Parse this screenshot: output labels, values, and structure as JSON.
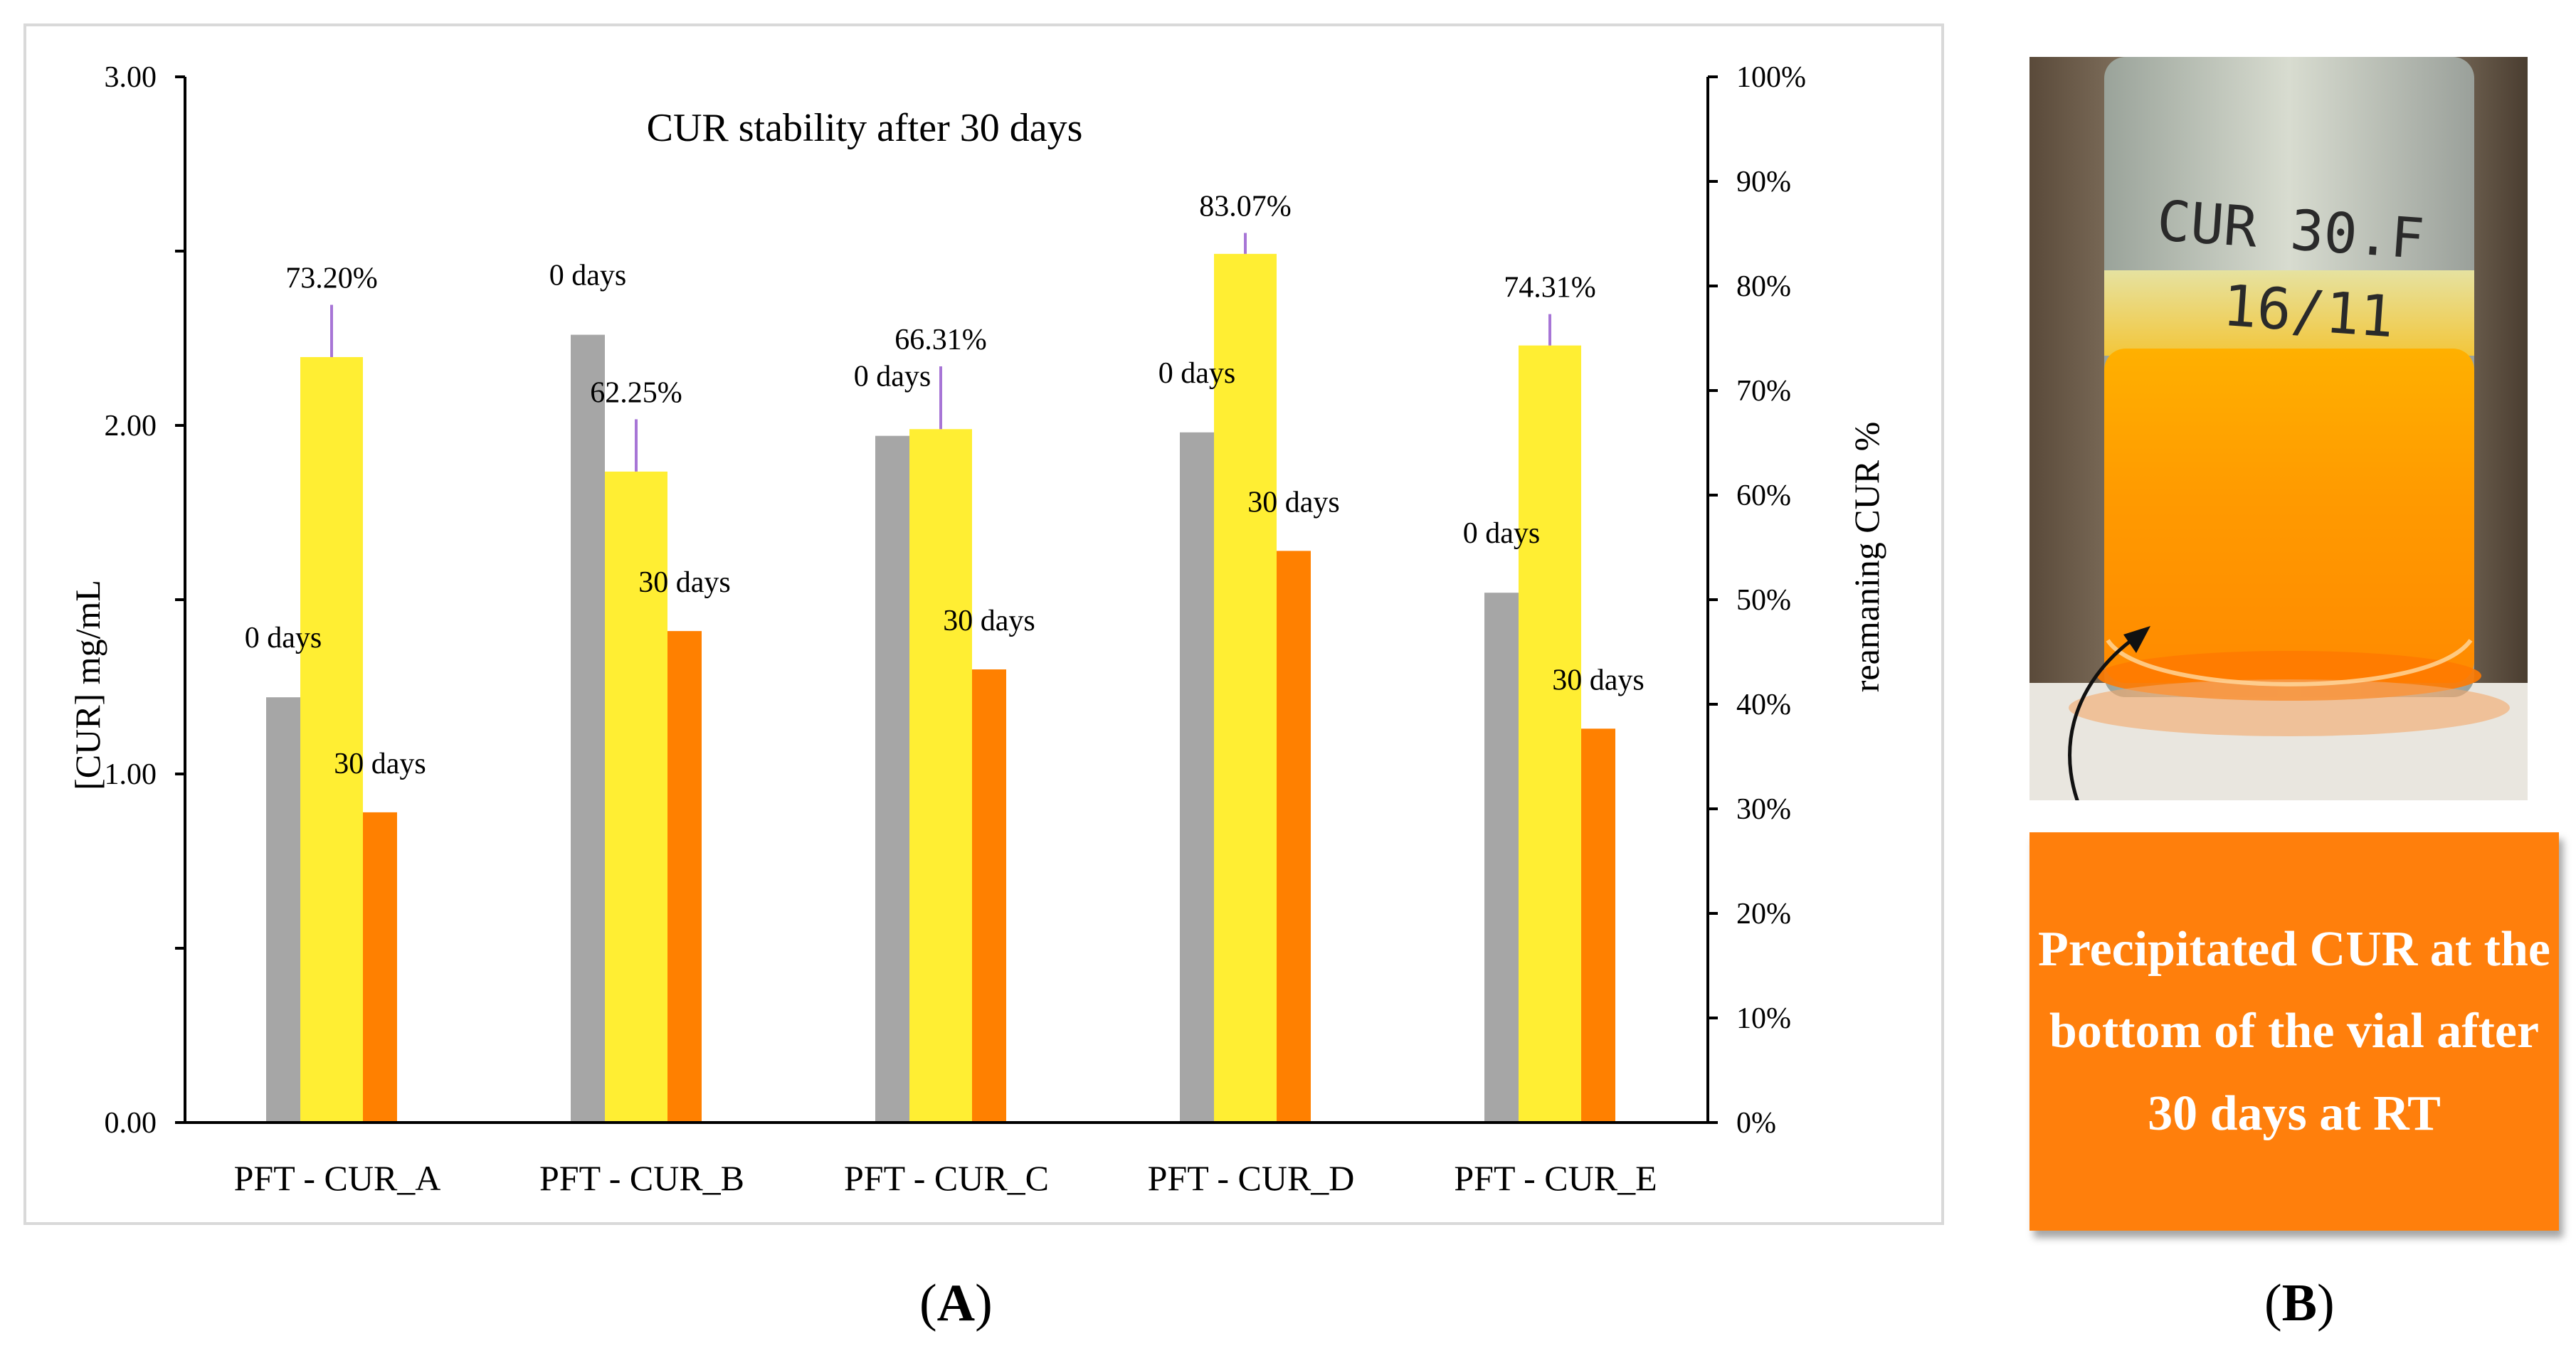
{
  "chart_data": {
    "type": "bar",
    "title": "CUR stability after 30 days",
    "categories": [
      "PFT - CUR_A",
      "PFT - CUR_B",
      "PFT - CUR_C",
      "PFT - CUR_D",
      "PFT - CUR_E"
    ],
    "series": [
      {
        "name": "0 days",
        "axis": "left",
        "color": "#a6a6a6",
        "values": [
          1.22,
          2.26,
          1.97,
          1.98,
          1.52
        ]
      },
      {
        "name": "remaining CUR %",
        "axis": "right",
        "color": "#ffee33",
        "values": [
          73.2,
          62.25,
          66.31,
          83.07,
          74.31
        ]
      },
      {
        "name": "30 days",
        "axis": "left",
        "color": "#ff8000",
        "values": [
          0.89,
          1.41,
          1.3,
          1.64,
          1.13
        ]
      }
    ],
    "data_labels": {
      "zero_days": [
        "0 days",
        "0 days",
        "0 days",
        "0 days",
        "0 days"
      ],
      "thirty_days": [
        "30 days",
        "30 days",
        "30 days",
        "30 days",
        "30 days"
      ],
      "percent": [
        "73.20%",
        "62.25%",
        "66.31%",
        "83.07%",
        "74.31%"
      ]
    },
    "percent_error": [
      5,
      5,
      6,
      2,
      3
    ],
    "ylabel": "[CUR] mg/mL",
    "y2label": "reamaning CUR %",
    "ylim": [
      0,
      3
    ],
    "y2lim": [
      0,
      100
    ],
    "yticks": [
      "0.00",
      "1.00",
      "2.00",
      "3.00"
    ],
    "y2ticks": [
      "0%",
      "10%",
      "20%",
      "30%",
      "40%",
      "50%",
      "60%",
      "70%",
      "80%",
      "90%",
      "100%"
    ]
  },
  "panel_a_label": "A",
  "panel_b_label": "B",
  "photo": {
    "vial_text_line1": "CUR 30.F",
    "vial_text_line2": "16/11"
  },
  "callout": {
    "text": "Precipitated CUR at the bottom of the vial after 30 days at RT",
    "color": "#ff7f0c"
  }
}
